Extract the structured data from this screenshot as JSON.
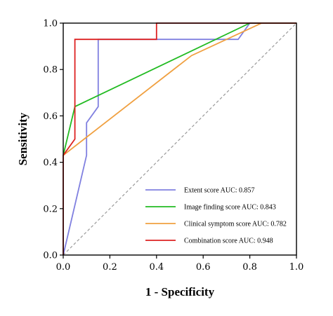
{
  "chart_data": {
    "type": "line",
    "title": "",
    "xlabel": "1 - Specificity",
    "ylabel": "Sensitivity",
    "xlim": [
      0,
      1
    ],
    "ylim": [
      0,
      1
    ],
    "x_ticks": [
      "0.0",
      "0.2",
      "0.4",
      "0.6",
      "0.8",
      "1.0"
    ],
    "y_ticks": [
      "0.0",
      "0.2",
      "0.4",
      "0.6",
      "0.8",
      "1.0"
    ],
    "grid": false,
    "legend_position": "bottom-right",
    "reference_line": {
      "style": "dashed",
      "color": "#9a9a9a",
      "points": [
        [
          0,
          0
        ],
        [
          1,
          1
        ]
      ]
    },
    "series": [
      {
        "name": "Extent score AUC: 0.857",
        "color": "#8080e0",
        "points": [
          [
            0,
            0
          ],
          [
            0.1,
            0.43
          ],
          [
            0.1,
            0.57
          ],
          [
            0.15,
            0.64
          ],
          [
            0.15,
            0.93
          ],
          [
            0.75,
            0.93
          ],
          [
            0.8,
            1.0
          ],
          [
            1.0,
            1.0
          ]
        ]
      },
      {
        "name": "Image finding score AUC: 0.843",
        "color": "#22bb22",
        "points": [
          [
            0,
            0.43
          ],
          [
            0.05,
            0.64
          ],
          [
            0.8,
            1.0
          ],
          [
            1.0,
            1.0
          ]
        ]
      },
      {
        "name": "Clinical symptom score AUC: 0.782",
        "color": "#f0a040",
        "points": [
          [
            0,
            0.43
          ],
          [
            0.55,
            0.86
          ],
          [
            0.85,
            1.0
          ],
          [
            1.0,
            1.0
          ]
        ]
      },
      {
        "name": "Combination score AUC: 0.948",
        "color": "#dd2222",
        "points": [
          [
            0,
            0
          ],
          [
            0,
            0.43
          ],
          [
            0.05,
            0.5
          ],
          [
            0.05,
            0.93
          ],
          [
            0.4,
            0.93
          ],
          [
            0.4,
            1.0
          ],
          [
            1.0,
            1.0
          ]
        ]
      }
    ]
  }
}
